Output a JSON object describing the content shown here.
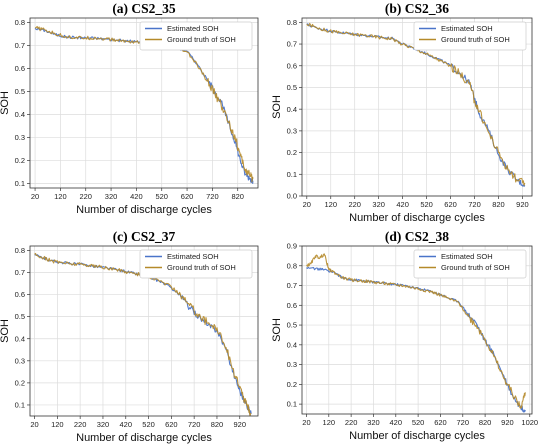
{
  "chart_data": [
    {
      "type": "line",
      "title": "(a) CS2_35",
      "xlabel": "Number of discharge cycles",
      "ylabel": "SOH",
      "xlim": [
        0,
        900
      ],
      "ylim": [
        0.08,
        0.82
      ],
      "xticks": [
        20,
        120,
        220,
        320,
        420,
        520,
        620,
        720,
        820
      ],
      "yticks": [
        0.1,
        0.2,
        0.3,
        0.4,
        0.5,
        0.6,
        0.7,
        0.8
      ],
      "grid": true,
      "legend_position": "top-right",
      "series": [
        {
          "name": "Estimated SOH",
          "color": "#4a74c9",
          "x": [
            20,
            60,
            100,
            140,
            180,
            220,
            260,
            300,
            340,
            380,
            420,
            460,
            500,
            540,
            580,
            620,
            660,
            700,
            730,
            760,
            790,
            810,
            830,
            850,
            870,
            880
          ],
          "y": [
            0.775,
            0.765,
            0.748,
            0.738,
            0.735,
            0.734,
            0.732,
            0.728,
            0.724,
            0.72,
            0.717,
            0.712,
            0.706,
            0.7,
            0.692,
            0.675,
            0.62,
            0.55,
            0.5,
            0.44,
            0.34,
            0.28,
            0.2,
            0.14,
            0.12,
            0.11
          ]
        },
        {
          "name": "Ground truth of SOH",
          "color": "#b58a2a",
          "x": [
            20,
            60,
            100,
            140,
            180,
            220,
            260,
            300,
            340,
            380,
            420,
            460,
            500,
            540,
            580,
            620,
            660,
            700,
            730,
            760,
            790,
            810,
            830,
            850,
            870,
            880
          ],
          "y": [
            0.778,
            0.767,
            0.75,
            0.74,
            0.734,
            0.733,
            0.733,
            0.729,
            0.723,
            0.719,
            0.716,
            0.71,
            0.705,
            0.699,
            0.69,
            0.672,
            0.615,
            0.545,
            0.49,
            0.43,
            0.35,
            0.3,
            0.22,
            0.16,
            0.13,
            0.12
          ]
        }
      ]
    },
    {
      "type": "line",
      "title": "(b) CS2_36",
      "xlabel": "Number of discharge cycles",
      "ylabel": "SOH",
      "xlim": [
        0,
        960
      ],
      "ylim": [
        0.0,
        0.82
      ],
      "xticks": [
        20,
        120,
        220,
        320,
        420,
        520,
        620,
        720,
        820,
        920
      ],
      "yticks": [
        0.0,
        0.1,
        0.2,
        0.3,
        0.4,
        0.5,
        0.6,
        0.7,
        0.8
      ],
      "grid": true,
      "legend_position": "top-right",
      "series": [
        {
          "name": "Estimated SOH",
          "color": "#4a74c9",
          "x": [
            20,
            60,
            100,
            140,
            180,
            220,
            260,
            300,
            340,
            380,
            420,
            460,
            500,
            540,
            580,
            620,
            660,
            700,
            720,
            740,
            780,
            820,
            860,
            900,
            930
          ],
          "y": [
            0.79,
            0.775,
            0.765,
            0.755,
            0.75,
            0.745,
            0.74,
            0.735,
            0.73,
            0.725,
            0.7,
            0.685,
            0.665,
            0.645,
            0.625,
            0.6,
            0.565,
            0.52,
            0.45,
            0.38,
            0.3,
            0.19,
            0.12,
            0.07,
            0.05
          ]
        },
        {
          "name": "Ground truth of SOH",
          "color": "#b58a2a",
          "x": [
            20,
            60,
            100,
            140,
            180,
            220,
            260,
            300,
            340,
            380,
            420,
            460,
            500,
            540,
            580,
            620,
            660,
            700,
            720,
            740,
            780,
            820,
            860,
            900,
            930
          ],
          "y": [
            0.792,
            0.777,
            0.763,
            0.756,
            0.749,
            0.744,
            0.741,
            0.734,
            0.729,
            0.724,
            0.698,
            0.684,
            0.664,
            0.644,
            0.622,
            0.598,
            0.562,
            0.515,
            0.44,
            0.39,
            0.29,
            0.2,
            0.12,
            0.07,
            0.06
          ]
        }
      ]
    },
    {
      "type": "line",
      "title": "(c) CS2_37",
      "xlabel": "Number of discharge cycles",
      "ylabel": "SOH",
      "xlim": [
        0,
        1000
      ],
      "ylim": [
        0.05,
        0.82
      ],
      "xticks": [
        20,
        120,
        220,
        320,
        420,
        520,
        620,
        720,
        820,
        920
      ],
      "yticks": [
        0.1,
        0.2,
        0.3,
        0.4,
        0.5,
        0.6,
        0.7,
        0.8
      ],
      "grid": true,
      "legend_position": "top-right",
      "series": [
        {
          "name": "Estimated SOH",
          "color": "#4a74c9",
          "x": [
            20,
            60,
            100,
            140,
            180,
            220,
            260,
            300,
            340,
            380,
            420,
            460,
            500,
            540,
            580,
            620,
            660,
            700,
            740,
            780,
            820,
            860,
            900,
            930,
            950,
            970
          ],
          "y": [
            0.78,
            0.765,
            0.752,
            0.745,
            0.74,
            0.737,
            0.732,
            0.726,
            0.72,
            0.712,
            0.705,
            0.695,
            0.685,
            0.672,
            0.655,
            0.63,
            0.595,
            0.54,
            0.5,
            0.46,
            0.44,
            0.35,
            0.22,
            0.14,
            0.1,
            0.06
          ]
        },
        {
          "name": "Ground truth of SOH",
          "color": "#b58a2a",
          "x": [
            20,
            60,
            100,
            140,
            180,
            220,
            260,
            300,
            340,
            380,
            420,
            460,
            500,
            540,
            580,
            620,
            660,
            700,
            740,
            780,
            820,
            860,
            900,
            930,
            950,
            970
          ],
          "y": [
            0.782,
            0.767,
            0.75,
            0.746,
            0.739,
            0.738,
            0.733,
            0.727,
            0.719,
            0.713,
            0.704,
            0.696,
            0.686,
            0.673,
            0.657,
            0.635,
            0.6,
            0.55,
            0.51,
            0.47,
            0.45,
            0.36,
            0.23,
            0.15,
            0.1,
            0.06
          ]
        }
      ]
    },
    {
      "type": "line",
      "title": "(d) CS2_38",
      "xlabel": "Number of discharge cycles",
      "ylabel": "SOH",
      "xlim": [
        0,
        1030
      ],
      "ylim": [
        0.05,
        0.9
      ],
      "xticks": [
        20,
        120,
        220,
        320,
        420,
        520,
        620,
        720,
        820,
        920,
        1020
      ],
      "yticks": [
        0.1,
        0.2,
        0.3,
        0.4,
        0.5,
        0.6,
        0.7,
        0.8,
        0.9
      ],
      "grid": true,
      "legend_position": "top-right",
      "series": [
        {
          "name": "Estimated SOH",
          "color": "#4a74c9",
          "x": [
            20,
            60,
            100,
            140,
            180,
            220,
            260,
            300,
            340,
            380,
            420,
            460,
            500,
            540,
            580,
            620,
            660,
            700,
            740,
            780,
            820,
            860,
            900,
            940,
            980,
            1000
          ],
          "y": [
            0.79,
            0.785,
            0.78,
            0.77,
            0.74,
            0.73,
            0.725,
            0.72,
            0.715,
            0.71,
            0.705,
            0.7,
            0.69,
            0.68,
            0.67,
            0.655,
            0.635,
            0.62,
            0.56,
            0.51,
            0.42,
            0.35,
            0.25,
            0.15,
            0.08,
            0.07
          ]
        },
        {
          "name": "Ground truth of SOH",
          "color": "#b58a2a",
          "x": [
            20,
            40,
            60,
            80,
            100,
            120,
            140,
            180,
            220,
            260,
            300,
            340,
            380,
            420,
            460,
            500,
            540,
            580,
            620,
            660,
            700,
            740,
            780,
            820,
            860,
            900,
            940,
            980,
            1000
          ],
          "y": [
            0.8,
            0.81,
            0.85,
            0.84,
            0.86,
            0.78,
            0.77,
            0.74,
            0.728,
            0.724,
            0.72,
            0.714,
            0.709,
            0.703,
            0.698,
            0.688,
            0.679,
            0.668,
            0.652,
            0.632,
            0.615,
            0.55,
            0.5,
            0.43,
            0.34,
            0.24,
            0.16,
            0.08,
            0.16
          ]
        }
      ]
    }
  ]
}
